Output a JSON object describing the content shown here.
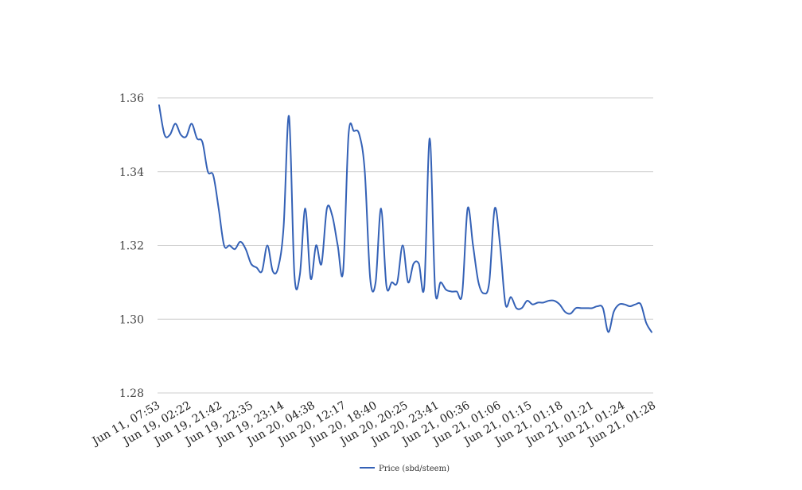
{
  "chart_data": {
    "type": "line",
    "title": "",
    "xlabel": "",
    "ylabel": "",
    "ylim": [
      1.28,
      1.36
    ],
    "yticks": [
      "1.28",
      "1.30",
      "1.32",
      "1.34",
      "1.36"
    ],
    "x_tick_labels": [
      "Jun 11, 07:53",
      "Jun 19, 02:22",
      "Jun 19, 21:42",
      "Jun 19, 22:35",
      "Jun 19, 23:14",
      "Jun 20, 04:38",
      "Jun 20, 12:17",
      "Jun 20, 18:40",
      "Jun 20, 20:25",
      "Jun 20, 23:41",
      "Jun 21, 00:36",
      "Jun 21, 01:06",
      "Jun 21, 01:15",
      "Jun 21, 01:18",
      "Jun 21, 01:21",
      "Jun 21, 01:24",
      "Jun 21, 01:28"
    ],
    "grid": true,
    "legend_position": "bottom",
    "series": [
      {
        "name": "Price (sbd/steem)",
        "color": "#3461b6",
        "values": [
          1.358,
          1.35,
          1.35,
          1.353,
          1.35,
          1.3495,
          1.353,
          1.349,
          1.348,
          1.34,
          1.339,
          1.33,
          1.32,
          1.32,
          1.319,
          1.321,
          1.319,
          1.315,
          1.314,
          1.313,
          1.32,
          1.313,
          1.314,
          1.325,
          1.355,
          1.312,
          1.312,
          1.33,
          1.311,
          1.32,
          1.315,
          1.33,
          1.328,
          1.32,
          1.313,
          1.35,
          1.351,
          1.35,
          1.34,
          1.311,
          1.31,
          1.33,
          1.309,
          1.31,
          1.31,
          1.32,
          1.31,
          1.315,
          1.315,
          1.309,
          1.349,
          1.308,
          1.31,
          1.308,
          1.3075,
          1.3075,
          1.307,
          1.33,
          1.32,
          1.31,
          1.307,
          1.31,
          1.33,
          1.32,
          1.304,
          1.306,
          1.303,
          1.303,
          1.305,
          1.304,
          1.3045,
          1.3045,
          1.305,
          1.305,
          1.304,
          1.302,
          1.3015,
          1.303,
          1.303,
          1.303,
          1.303,
          1.3035,
          1.303,
          1.2965,
          1.302,
          1.304,
          1.304,
          1.3035,
          1.304,
          1.304,
          1.299,
          1.2965
        ]
      }
    ]
  }
}
